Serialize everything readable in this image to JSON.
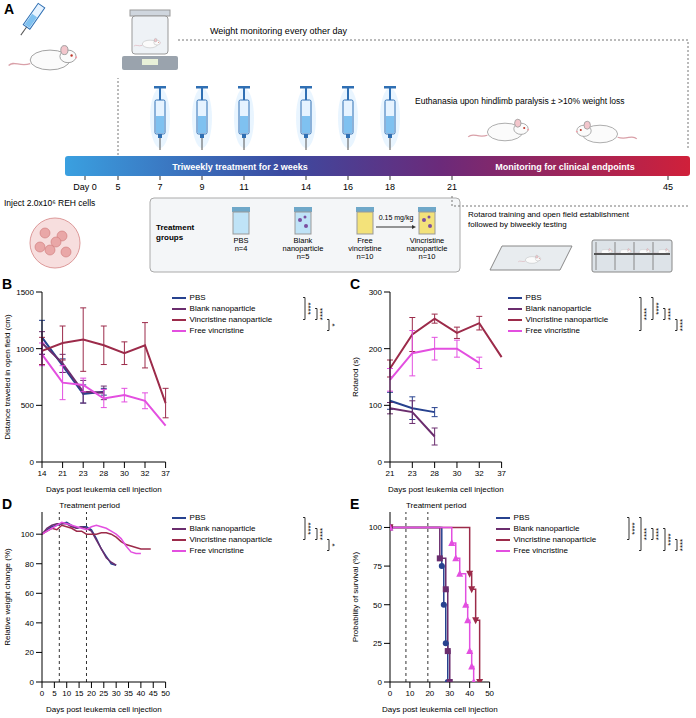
{
  "diagram": {
    "panel_label": "A",
    "weight_monitoring": "Weight monitoring every other day",
    "euthanasia": "Euthanasia upon hindlimb paralysis ± >10% weight loss",
    "timeline_ticks": [
      {
        "value": 0,
        "label": "Day 0"
      },
      5,
      7,
      9,
      11,
      14,
      16,
      18,
      21,
      45
    ],
    "injection_days": [
      7,
      9,
      11,
      14,
      16,
      18
    ],
    "phases": [
      "Triweekly treatment for 2 weeks",
      "Monitoring for clinical endpoints"
    ],
    "injection": "Inject 2.0x10⁶ REH cells",
    "treatment_groups": {
      "title": "Treatment groups",
      "groups": [
        {
          "name": "PBS",
          "label": "n=4"
        },
        {
          "name": "Blank nanoparticle",
          "label": "n=5"
        },
        {
          "name": "Free vincristine",
          "label": "n=10"
        },
        {
          "name": "Vincristine nanoparticle",
          "label": "n=10"
        }
      ],
      "dose": "0.15 mg/kg"
    },
    "behavior_testing": "Rotarod training and open field establishment followed by biweekly testing"
  },
  "chart_data": [
    {
      "panel_label": "B",
      "type": "line",
      "x_label": "Days post leukemia cell injection",
      "y_label": "Distance traveled in open field (cm)",
      "categories": [
        14,
        21,
        23,
        28,
        30,
        32,
        37
      ],
      "ylim": [
        0,
        1500
      ],
      "yticks": [
        0,
        500,
        1000,
        1500
      ],
      "legend": "right",
      "series": [
        {
          "name": "PBS",
          "color": "#27428f",
          "values": [
            1100,
            850,
            600,
            620,
            null,
            null,
            null
          ],
          "errors": [
            150,
            60,
            80,
            30,
            null,
            null,
            null
          ]
        },
        {
          "name": "Blank nanoparticle",
          "color": "#6b2d6e",
          "values": [
            1050,
            870,
            620,
            610,
            null,
            null,
            null
          ],
          "errors": [
            100,
            80,
            100,
            60,
            null,
            null,
            null
          ]
        },
        {
          "name": "Vincristine nanoparticle",
          "color": "#9c2b4a",
          "values": [
            980,
            1050,
            1080,
            1030,
            960,
            1030,
            520
          ],
          "errors": [
            120,
            150,
            280,
            170,
            100,
            200,
            130
          ]
        },
        {
          "name": "Free vincristine",
          "color": "#e34fe0",
          "values": [
            950,
            700,
            680,
            560,
            590,
            540,
            320
          ],
          "errors": [
            100,
            150,
            60,
            80,
            60,
            70,
            null
          ]
        }
      ],
      "significance": [
        {
          "from": "PBS",
          "to": "Vincristine nanoparticle",
          "label": "****"
        },
        {
          "from": "Blank nanoparticle",
          "to": "Vincristine nanoparticle",
          "label": "****"
        },
        {
          "from": "Vincristine nanoparticle",
          "to": "Free vincristine",
          "label": "*"
        }
      ]
    },
    {
      "panel_label": "C",
      "type": "line",
      "x_label": "Days post leukemia cell injection",
      "y_label": "Rotarod (s)",
      "categories": [
        21,
        23,
        28,
        30,
        32,
        37
      ],
      "ylim": [
        0,
        300
      ],
      "yticks": [
        0,
        100,
        200,
        300
      ],
      "legend": "right",
      "series": [
        {
          "name": "PBS",
          "color": "#27428f",
          "values": [
            108,
            95,
            88,
            null,
            null,
            null
          ],
          "errors": [
            15,
            20,
            8,
            null,
            null,
            null
          ]
        },
        {
          "name": "Blank nanoparticle",
          "color": "#6b2d6e",
          "values": [
            95,
            88,
            45,
            null,
            null,
            null
          ],
          "errors": [
            10,
            20,
            15,
            null,
            null,
            null
          ]
        },
        {
          "name": "Vincristine nanoparticle",
          "color": "#9c2b4a",
          "values": [
            165,
            225,
            253,
            228,
            245,
            185
          ],
          "errors": [
            15,
            30,
            8,
            10,
            12,
            null
          ]
        },
        {
          "name": "Free vincristine",
          "color": "#e34fe0",
          "values": [
            145,
            192,
            200,
            200,
            175,
            null
          ],
          "errors": [
            20,
            40,
            20,
            15,
            10,
            null
          ]
        }
      ],
      "significance": [
        {
          "from": "PBS",
          "to": "Free vincristine",
          "label": "****"
        },
        {
          "from": "PBS",
          "to": "Vincristine nanoparticle",
          "label": "****"
        },
        {
          "from": "Blank nanoparticle",
          "to": "Vincristine nanoparticle",
          "label": "****"
        },
        {
          "from": "Vincristine nanoparticle",
          "to": "Free vincristine",
          "label": "****"
        }
      ]
    },
    {
      "panel_label": "D",
      "type": "line",
      "x_label": "Days post leukemia cell injection",
      "y_label": "Relative weight change (%)",
      "xlim": [
        0,
        50
      ],
      "xticks": [
        0,
        5,
        10,
        15,
        20,
        25,
        30,
        35,
        40,
        45,
        50
      ],
      "ylim": [
        0,
        115
      ],
      "yticks": [
        0,
        20,
        40,
        60,
        80,
        100
      ],
      "legend": "right",
      "annotations": [
        {
          "text": "Treatment period",
          "x": [
            7,
            18
          ]
        }
      ],
      "series": [
        {
          "name": "PBS",
          "color": "#27428f",
          "x": [
            0,
            2,
            4,
            6,
            8,
            10,
            12,
            14,
            16,
            18,
            20,
            22,
            24,
            26,
            28,
            30
          ],
          "values": [
            100,
            103,
            105,
            106,
            107,
            108,
            106,
            104,
            105,
            105,
            103,
            97,
            90,
            85,
            80,
            79
          ]
        },
        {
          "name": "Blank nanoparticle",
          "color": "#6b2d6e",
          "x": [
            0,
            2,
            4,
            6,
            8,
            10,
            12,
            14,
            16,
            18,
            20,
            22,
            24,
            26,
            28,
            30
          ],
          "values": [
            100,
            104,
            106,
            107,
            107,
            107,
            105,
            104,
            105,
            104,
            102,
            96,
            90,
            84,
            81,
            79
          ]
        },
        {
          "name": "Vincristine nanoparticle",
          "color": "#9c2b4a",
          "x": [
            0,
            2,
            4,
            6,
            8,
            10,
            12,
            14,
            16,
            18,
            20,
            22,
            24,
            26,
            28,
            30,
            32,
            34,
            36,
            38,
            40,
            42,
            44
          ],
          "values": [
            100,
            102,
            104,
            103,
            106,
            105,
            104,
            102,
            102,
            100,
            100,
            100,
            101,
            101,
            100,
            98,
            95,
            93,
            92,
            91,
            90,
            90,
            90
          ]
        },
        {
          "name": "Free vincristine",
          "color": "#e34fe0",
          "x": [
            0,
            2,
            4,
            6,
            8,
            10,
            12,
            14,
            16,
            18,
            20,
            22,
            24,
            26,
            28,
            30,
            32,
            34,
            36,
            38,
            40
          ],
          "values": [
            100,
            102,
            104,
            106,
            108,
            107,
            106,
            105,
            104,
            103,
            105,
            106,
            105,
            104,
            102,
            100,
            97,
            92,
            88,
            87,
            87
          ]
        }
      ],
      "significance": [
        {
          "from": "PBS",
          "to": "Vincristine nanoparticle",
          "label": "****"
        },
        {
          "from": "Blank nanoparticle",
          "to": "Vincristine nanoparticle",
          "label": "****"
        },
        {
          "from": "Vincristine nanoparticle",
          "to": "Free vincristine",
          "label": "*"
        }
      ]
    },
    {
      "panel_label": "E",
      "type": "line",
      "line_style": "step",
      "x_label": "Days post leukemia cell injection",
      "y_label": "Probability of survival (%)",
      "xlim": [
        0,
        50
      ],
      "xticks": [
        0,
        10,
        20,
        30,
        40,
        50
      ],
      "ylim": [
        0,
        110
      ],
      "yticks": [
        0,
        25,
        50,
        75,
        100
      ],
      "legend": "right",
      "annotations": [
        {
          "text": "Treatment period",
          "x": [
            8,
            19
          ]
        }
      ],
      "series": [
        {
          "name": "PBS",
          "color": "#27428f",
          "marker": "circle",
          "x": [
            0,
            26,
            27,
            28,
            29
          ],
          "values": [
            100,
            75,
            50,
            25,
            0
          ]
        },
        {
          "name": "Blank nanoparticle",
          "color": "#6b2d6e",
          "marker": "square",
          "x": [
            0,
            25,
            28,
            29,
            30
          ],
          "values": [
            100,
            80,
            60,
            20,
            0
          ]
        },
        {
          "name": "Vincristine nanoparticle",
          "color": "#9c2b4a",
          "marker": "triangle-down",
          "x": [
            0,
            40,
            41,
            43,
            45
          ],
          "values": [
            100,
            70,
            60,
            40,
            0
          ]
        },
        {
          "name": "Free vincristine",
          "color": "#e34fe0",
          "marker": "triangle",
          "x": [
            0,
            31,
            33,
            35,
            38,
            39,
            40,
            41,
            42
          ],
          "values": [
            100,
            90,
            80,
            70,
            50,
            40,
            20,
            10,
            0
          ]
        }
      ],
      "significance": [
        {
          "from": "PBS",
          "to": "Vincristine nanoparticle",
          "label": "****"
        },
        {
          "from": "PBS",
          "to": "Free vincristine",
          "label": "****"
        },
        {
          "from": "Blank nanoparticle",
          "to": "Vincristine nanoparticle",
          "label": "****"
        },
        {
          "from": "Blank nanoparticle",
          "to": "Free vincristine",
          "label": "****"
        },
        {
          "from": "Vincristine nanoparticle",
          "to": "Free vincristine",
          "label": "****"
        }
      ]
    }
  ]
}
